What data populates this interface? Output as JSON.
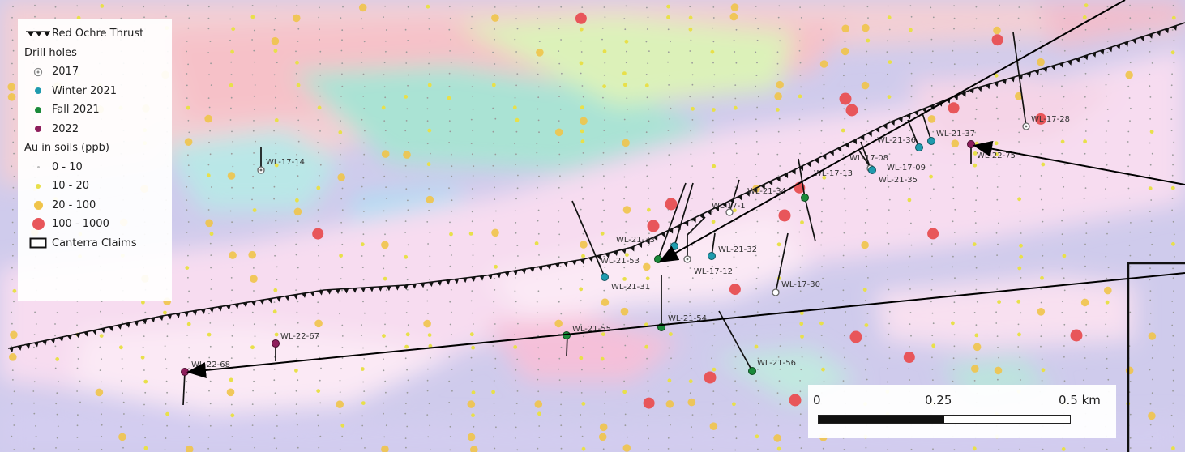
{
  "legend": {
    "thrust": {
      "label": "Red Ochre Thrust",
      "icon": "thrust-triangles-icon"
    },
    "drill_heading": "Drill holes",
    "drill_items": [
      {
        "label": "2017",
        "color": "#888888",
        "icon": "circle-dot-icon"
      },
      {
        "label": "Winter 2021",
        "color": "#1f9bae",
        "icon": "dot-icon"
      },
      {
        "label": "Fall 2021",
        "color": "#1a8a3a",
        "icon": "dot-icon"
      },
      {
        "label": "2022",
        "color": "#8e1e5c",
        "icon": "dot-icon"
      }
    ],
    "soil_heading": "Au in soils (ppb)",
    "soil_items": [
      {
        "label": "0 - 10",
        "color": "#d9d9d9"
      },
      {
        "label": "10 - 20",
        "color": "#e8e04a"
      },
      {
        "label": "20 - 100",
        "color": "#f0c44a"
      },
      {
        "label": "100 - 1000",
        "color": "#e8565a"
      }
    ],
    "claims": {
      "label": "Canterra Claims",
      "icon": "claims-rectangle-icon"
    }
  },
  "scale": {
    "labels": [
      "0",
      "0.25",
      "0.5 km"
    ]
  },
  "drill_holes": [
    {
      "label": "WL-17-14",
      "year": "2017"
    },
    {
      "label": "WL-17-28",
      "year": "2017"
    },
    {
      "label": "WL-21-37",
      "year": "Winter 2021"
    },
    {
      "label": "WL-22-75",
      "year": "2022"
    },
    {
      "label": "WL-21-36",
      "year": "Winter 2021"
    },
    {
      "label": "WL-17-08",
      "year": "2017"
    },
    {
      "label": "WL-17-09",
      "year": "2017"
    },
    {
      "label": "WL-17-13",
      "year": "2017"
    },
    {
      "label": "WL-21-35",
      "year": "Winter 2021"
    },
    {
      "label": "WL-21-34",
      "year": "Fall 2021"
    },
    {
      "label": "WL-17-1",
      "year": "2017"
    },
    {
      "label": "WL-21-33",
      "year": "Winter 2021"
    },
    {
      "label": "WL-21-32",
      "year": "Winter 2021"
    },
    {
      "label": "WL-21-53",
      "year": "Fall 2021"
    },
    {
      "label": "WL-17-12",
      "year": "2017"
    },
    {
      "label": "WL-21-31",
      "year": "Winter 2021"
    },
    {
      "label": "WL-17-30",
      "year": "2017"
    },
    {
      "label": "WL-21-54",
      "year": "Fall 2021"
    },
    {
      "label": "WL-21-55",
      "year": "Fall 2021"
    },
    {
      "label": "WL-21-56",
      "year": "Fall 2021"
    },
    {
      "label": "WL-22-67",
      "year": "2022"
    },
    {
      "label": "WL-22-68",
      "year": "2022"
    }
  ],
  "colors": {
    "thrust": "#111111",
    "arrow": "#000000",
    "claims": "#111111"
  }
}
